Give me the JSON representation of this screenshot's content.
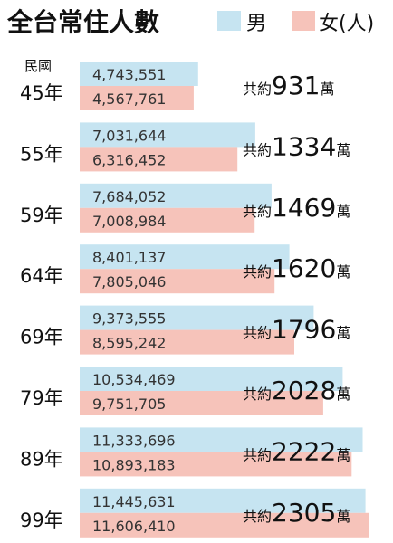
{
  "chart_data": {
    "type": "bar",
    "title": "全台常住人數",
    "year_prefix": "民國",
    "total_prefix": "共約",
    "total_suffix": "萬",
    "legend": [
      {
        "label": "男",
        "color": "#c6e4f1"
      },
      {
        "label": "女(人)",
        "color": "#f6c3ba"
      }
    ],
    "categories": [
      "45年",
      "55年",
      "59年",
      "64年",
      "69年",
      "79年",
      "89年",
      "99年"
    ],
    "series": [
      {
        "name": "男",
        "color": "#c6e4f1",
        "values": [
          4743551,
          7031644,
          7684052,
          8401137,
          9373555,
          10534469,
          11333696,
          11445631
        ],
        "labels": [
          "4,743,551",
          "7,031,644",
          "7,684,052",
          "8,401,137",
          "9,373,555",
          "10,534,469",
          "11,333,696",
          "11,445,631"
        ]
      },
      {
        "name": "女(人)",
        "color": "#f6c3ba",
        "values": [
          4567761,
          6316452,
          7008984,
          7805046,
          8595242,
          9751705,
          10893183,
          11606410
        ],
        "labels": [
          "4,567,761",
          "6,316,452",
          "7,008,984",
          "7,805,046",
          "8,595,242",
          "9,751,705",
          "10,893,183",
          "11,606,410"
        ]
      }
    ],
    "totals": [
      "931",
      "1334",
      "1469",
      "1620",
      "1796",
      "2028",
      "2222",
      "2305"
    ]
  }
}
